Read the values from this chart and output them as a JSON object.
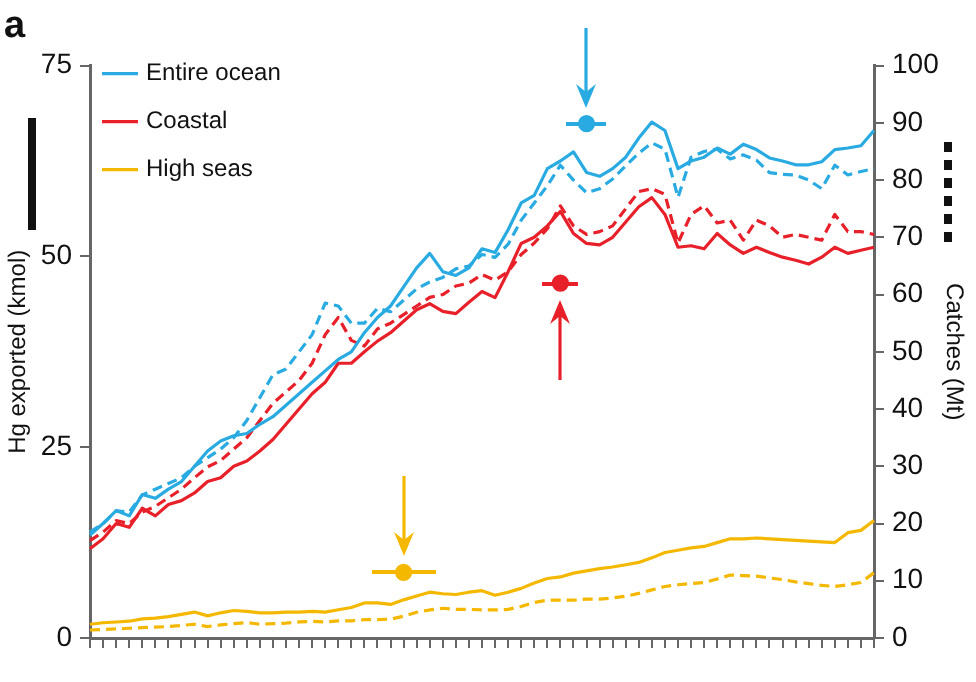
{
  "chart_data": {
    "type": "line",
    "title": "a",
    "ylabel": "Hg exported (kmol)",
    "y2label": "Catches (Mt)",
    "categories": [
      null,
      null,
      null,
      null,
      null,
      null,
      null,
      null,
      null,
      null,
      null,
      null,
      null,
      null,
      null,
      null,
      null,
      null,
      null,
      null,
      null,
      null,
      null,
      null,
      null,
      null,
      null,
      null,
      null,
      null,
      null,
      null,
      null,
      null,
      null,
      null,
      null,
      null,
      null,
      null,
      null,
      null,
      null,
      null,
      null,
      null,
      null,
      null,
      null,
      null,
      null,
      null,
      null,
      null,
      null,
      null,
      null,
      null,
      null,
      null,
      null
    ],
    "ylim": [
      0,
      75
    ],
    "yticks": [
      0,
      25,
      50,
      75
    ],
    "y2lim": [
      0,
      100
    ],
    "y2ticks": [
      0,
      10,
      20,
      30,
      40,
      50,
      60,
      70,
      80,
      90,
      100
    ],
    "grid": false,
    "legend": "top left",
    "tick_labels": "y",
    "marker": "none",
    "series": [
      {
        "name": "Entire ocean",
        "color": "#29abe2",
        "line_style": "solid",
        "axis": "y",
        "values": [
          13.5,
          15,
          16.7,
          16,
          18.8,
          18.3,
          19.5,
          20.5,
          22.5,
          24.5,
          25.8,
          26.5,
          26.8,
          28,
          29,
          30.5,
          32,
          33.5,
          35,
          36.5,
          37.5,
          40,
          42,
          43.5,
          46,
          48.5,
          50.4,
          48,
          47.5,
          48.5,
          51,
          50.5,
          53.5,
          57,
          58,
          61.5,
          62.5,
          63.7,
          61,
          60.5,
          61.5,
          63,
          65.5,
          67.6,
          66.5,
          61.5,
          62.5,
          63,
          64.2,
          63.4,
          64.7,
          64,
          62.9,
          62.5,
          62,
          62,
          62.4,
          64,
          64.2,
          64.5,
          66.5
        ]
      },
      {
        "name": "Coastal",
        "color": "#e8202a",
        "line_style": "solid",
        "axis": "y",
        "values": [
          11.7,
          13,
          15,
          14.5,
          17,
          16,
          17.5,
          18,
          19,
          20.5,
          21,
          22.5,
          23.2,
          24.5,
          26,
          28,
          30,
          32,
          33.5,
          36,
          36,
          37.5,
          38.9,
          40,
          41.5,
          43,
          43.8,
          42.8,
          42.5,
          44,
          45.4,
          44.6,
          48,
          51.7,
          52.5,
          54,
          55.9,
          53,
          51.7,
          51.5,
          52.5,
          54.5,
          56.5,
          57.7,
          55.5,
          51.2,
          51.4,
          51,
          53,
          51.5,
          50.4,
          51.2,
          50.5,
          49.9,
          49.5,
          49,
          49.9,
          51.2,
          50.4,
          50.8,
          51.2
        ]
      },
      {
        "name": "High seas",
        "color": "#f5b800",
        "line_style": "solid",
        "axis": "y",
        "values": [
          1.8,
          2,
          2.1,
          2.2,
          2.5,
          2.6,
          2.8,
          3.1,
          3.4,
          2.9,
          3.3,
          3.6,
          3.5,
          3.3,
          3.3,
          3.4,
          3.4,
          3.5,
          3.4,
          3.7,
          4,
          4.6,
          4.6,
          4.4,
          5,
          5.5,
          6,
          5.8,
          5.7,
          6,
          6.2,
          5.6,
          6,
          6.5,
          7.2,
          7.8,
          8,
          8.5,
          8.8,
          9.1,
          9.3,
          9.6,
          9.9,
          10.5,
          11.2,
          11.5,
          11.8,
          12,
          12.5,
          13,
          13,
          13.1,
          13,
          12.9,
          12.8,
          12.7,
          12.6,
          12.5,
          13.8,
          14.1,
          15.4
        ]
      },
      {
        "color": "#29abe2",
        "line_style": "dashed",
        "axis": "y2",
        "values": [
          18.5,
          20,
          22.2,
          22,
          25,
          26,
          27,
          28,
          30,
          31.5,
          33,
          35,
          38,
          42,
          46,
          47,
          50,
          53,
          58.5,
          58,
          55,
          55,
          57.6,
          57,
          59,
          61,
          62.2,
          63,
          64.5,
          65,
          67,
          66.5,
          68.8,
          73,
          76,
          79,
          82.6,
          80,
          77.8,
          78.5,
          80.2,
          82.5,
          84.7,
          86.5,
          85.4,
          77,
          84,
          85,
          85.4,
          83.7,
          84.4,
          83.5,
          81.3,
          81,
          80.9,
          80,
          78.5,
          82.6,
          80.9,
          81.5,
          82
        ]
      },
      {
        "color": "#e8202a",
        "line_style": "dashed",
        "axis": "y2",
        "values": [
          17,
          18.5,
          20.5,
          20,
          22,
          23,
          24.5,
          26,
          28,
          29.9,
          31,
          33,
          35,
          38,
          41,
          43,
          45,
          48,
          53,
          56,
          52,
          51,
          54,
          55,
          56.5,
          58,
          59.5,
          60,
          61.5,
          62,
          63.5,
          62.5,
          64,
          67,
          69,
          71.5,
          75.5,
          72,
          70.5,
          71,
          72,
          75,
          78,
          78.5,
          77.5,
          69,
          74,
          75.5,
          72.5,
          73,
          69.5,
          73,
          72,
          70,
          70.5,
          70,
          69.5,
          74,
          71,
          71,
          70.5
        ]
      },
      {
        "color": "#f5b800",
        "line_style": "dashed",
        "axis": "y2",
        "values": [
          1.4,
          1.5,
          1.6,
          1.7,
          1.8,
          1.9,
          2,
          2.2,
          2.4,
          2,
          2.3,
          2.5,
          2.7,
          2.4,
          2.5,
          2.6,
          2.8,
          2.9,
          2.8,
          3,
          3,
          3.2,
          3.2,
          3.3,
          3.8,
          4.5,
          4.9,
          5.2,
          5,
          5,
          4.9,
          4.9,
          5,
          5.5,
          6.2,
          6.6,
          6.6,
          6.6,
          6.8,
          6.8,
          7,
          7.3,
          7.8,
          8.4,
          9,
          9.3,
          9.5,
          9.7,
          10.3,
          11,
          10.9,
          10.8,
          10.5,
          10.2,
          9.8,
          9.5,
          9.2,
          9,
          9.3,
          9.7,
          11.4
        ]
      },
      {
        "type": "scatter",
        "color": "#29abe2",
        "marker": "circle",
        "axis": "y",
        "values": [
          null,
          null,
          null,
          null,
          null,
          null,
          null,
          null,
          null,
          null,
          null,
          null,
          null,
          null,
          null,
          null,
          null,
          null,
          null,
          null,
          null,
          null,
          null,
          null,
          null,
          null,
          null,
          null,
          null,
          null,
          null,
          null,
          null,
          null,
          null,
          null,
          null,
          null,
          67.4,
          null,
          null,
          null,
          null,
          null,
          null,
          null,
          null,
          null,
          null,
          null,
          null,
          null,
          null,
          null,
          null,
          null,
          null,
          null,
          null,
          null,
          null
        ]
      },
      {
        "type": "scatter",
        "color": "#e8202a",
        "marker": "circle",
        "axis": "y",
        "values": [
          null,
          null,
          null,
          null,
          null,
          null,
          null,
          null,
          null,
          null,
          null,
          null,
          null,
          null,
          null,
          null,
          null,
          null,
          null,
          null,
          null,
          null,
          null,
          null,
          null,
          null,
          null,
          null,
          null,
          null,
          null,
          null,
          null,
          null,
          null,
          null,
          46.5,
          null,
          null,
          null,
          null,
          null,
          null,
          null,
          null,
          null,
          null,
          null,
          null,
          null,
          null,
          null,
          null,
          null,
          null,
          null,
          null,
          null,
          null,
          null,
          null
        ]
      },
      {
        "type": "scatter",
        "color": "#f5b800",
        "marker": "circle",
        "axis": "y",
        "values": [
          null,
          null,
          null,
          null,
          null,
          null,
          null,
          null,
          null,
          null,
          null,
          null,
          null,
          null,
          null,
          null,
          null,
          null,
          null,
          null,
          null,
          null,
          null,
          null,
          8.6,
          null,
          null,
          null,
          null,
          null,
          null,
          null,
          null,
          null,
          null,
          null,
          null,
          null,
          null,
          null,
          null,
          null,
          null,
          null,
          null,
          null,
          null,
          null,
          null,
          null,
          null,
          null,
          null,
          null,
          null,
          null,
          null,
          null,
          null,
          null,
          null
        ]
      }
    ]
  }
}
